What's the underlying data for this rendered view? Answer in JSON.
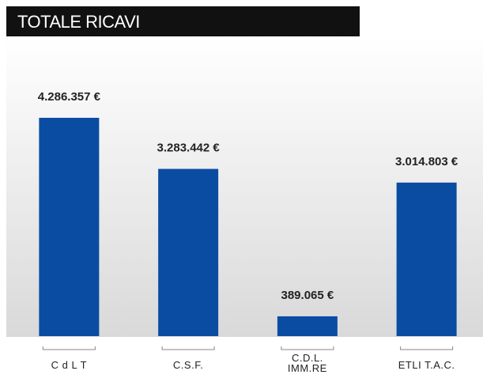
{
  "chart_data": {
    "type": "bar",
    "title": "TOTALE RICAVI",
    "categories": [
      "C d L T",
      "C.S.F.",
      "C.D.L.\nIMM.RE",
      "ETLI T.A.C."
    ],
    "values": [
      4286357,
      3283442,
      389065,
      3014803
    ],
    "value_labels": [
      "4.286.357 €",
      "3.283.442 €",
      "389.065 €",
      "3.014.803 €"
    ],
    "color": "#0b4ca3",
    "ylim": [
      0,
      5000000
    ]
  }
}
